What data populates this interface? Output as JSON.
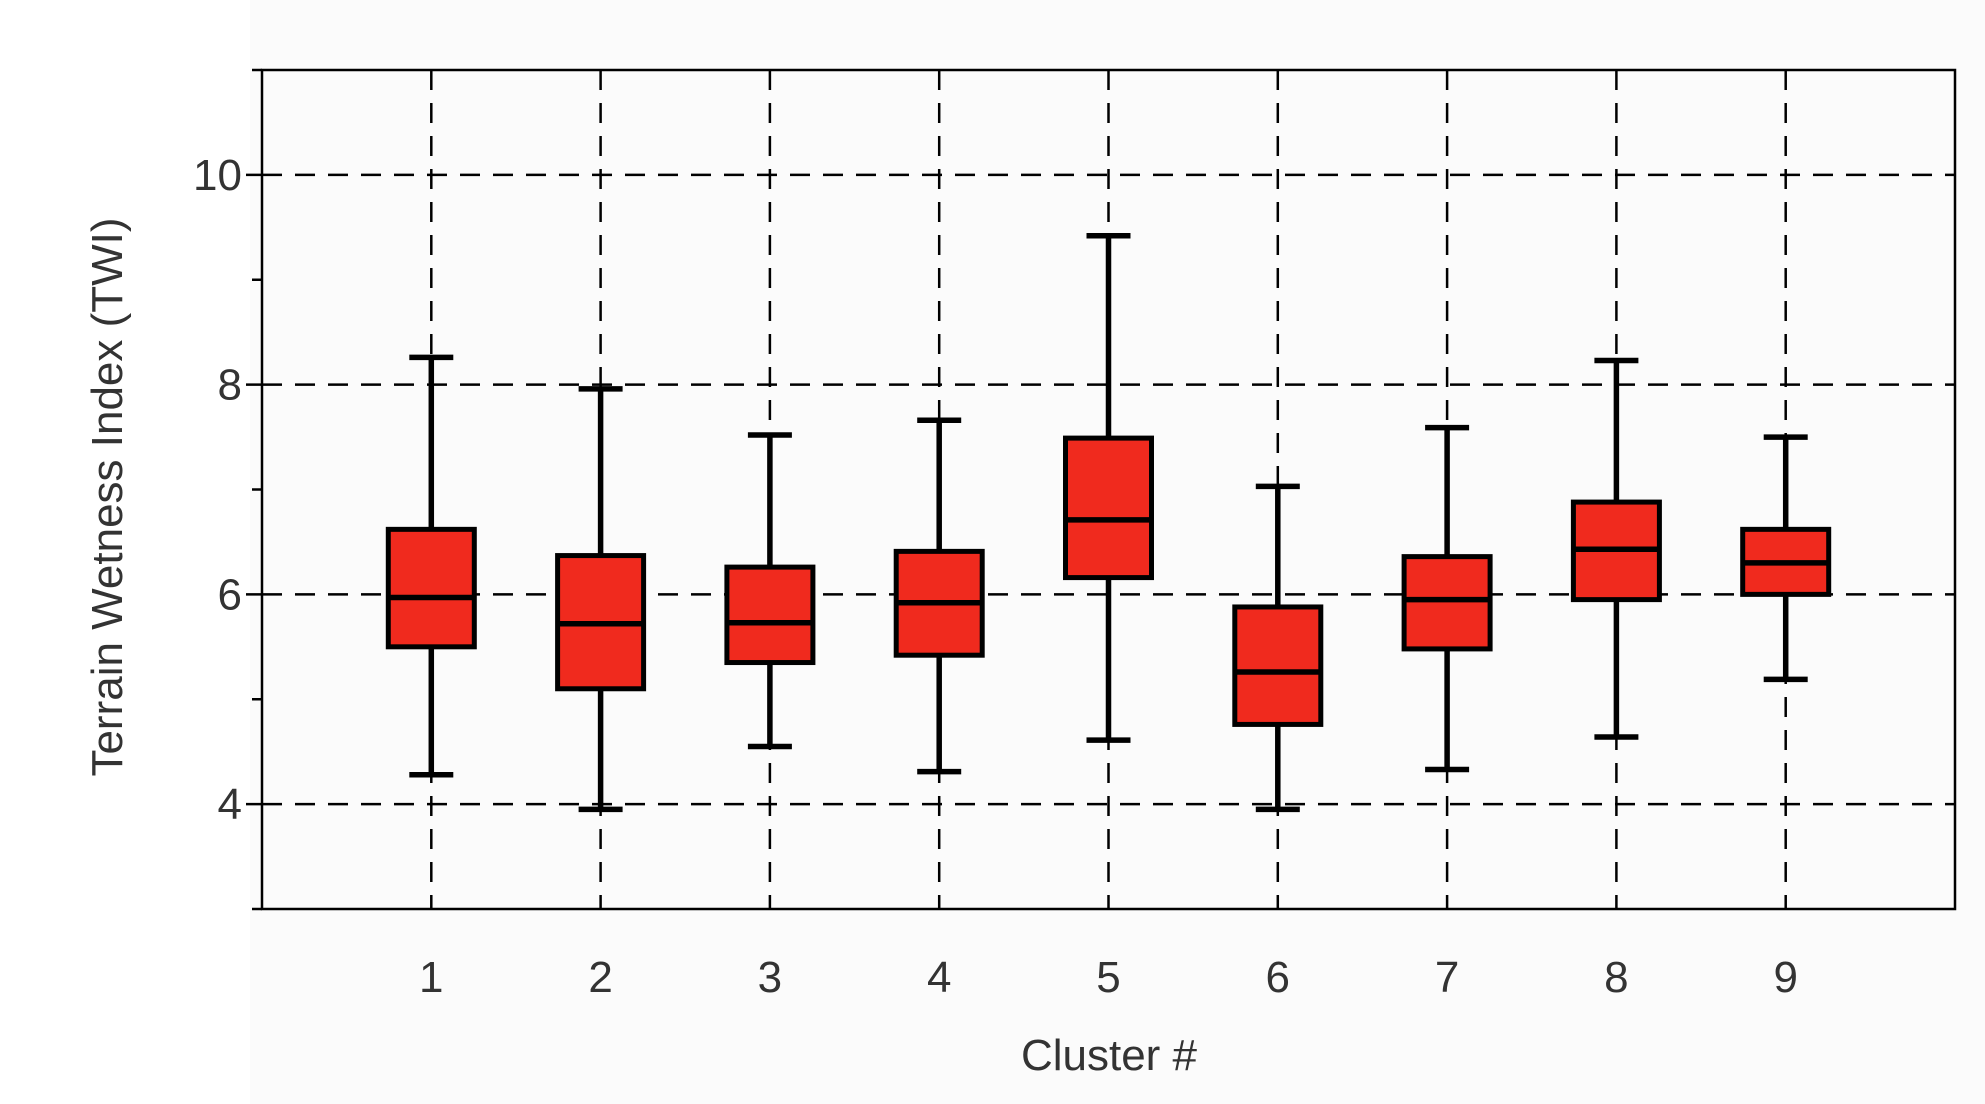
{
  "chart_data": {
    "type": "box",
    "xlabel": "Cluster #",
    "ylabel": "Terrain Wetness Index (TWI)",
    "ylim": [
      3,
      11
    ],
    "yticks": [
      4,
      6,
      8,
      10
    ],
    "categories": [
      "1",
      "2",
      "3",
      "4",
      "5",
      "6",
      "7",
      "8",
      "9"
    ],
    "grid": true,
    "grid_style": "dashed",
    "box_color": "#f02a1e",
    "line_color": "#000000",
    "boxes": [
      {
        "category": "1",
        "whisker_low": 4.28,
        "q1": 5.5,
        "median": 5.97,
        "q3": 6.62,
        "whisker_high": 8.26
      },
      {
        "category": "2",
        "whisker_low": 3.95,
        "q1": 5.1,
        "median": 5.72,
        "q3": 6.37,
        "whisker_high": 7.96
      },
      {
        "category": "3",
        "whisker_low": 4.55,
        "q1": 5.35,
        "median": 5.73,
        "q3": 6.26,
        "whisker_high": 7.52
      },
      {
        "category": "4",
        "whisker_low": 4.31,
        "q1": 5.42,
        "median": 5.92,
        "q3": 6.41,
        "whisker_high": 7.66
      },
      {
        "category": "5",
        "whisker_low": 4.61,
        "q1": 6.16,
        "median": 6.71,
        "q3": 7.49,
        "whisker_high": 9.42
      },
      {
        "category": "6",
        "whisker_low": 3.95,
        "q1": 4.76,
        "median": 5.26,
        "q3": 5.88,
        "whisker_high": 7.03
      },
      {
        "category": "7",
        "whisker_low": 4.33,
        "q1": 5.48,
        "median": 5.95,
        "q3": 6.36,
        "whisker_high": 7.59
      },
      {
        "category": "8",
        "whisker_low": 4.64,
        "q1": 5.95,
        "median": 6.43,
        "q3": 6.88,
        "whisker_high": 8.23
      },
      {
        "category": "9",
        "whisker_low": 5.19,
        "q1": 6.0,
        "median": 6.3,
        "q3": 6.62,
        "whisker_high": 7.5
      }
    ]
  }
}
